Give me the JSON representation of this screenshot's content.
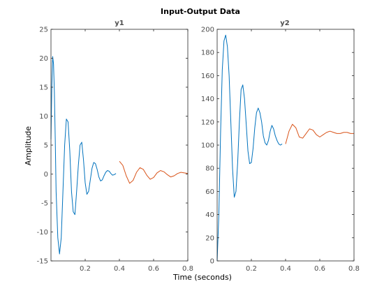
{
  "figure": {
    "title": "Input-Output Data",
    "xlabel": "Time (seconds)",
    "ylabel": "Amplitude"
  },
  "colors": {
    "estimation": "#0072bd",
    "validation": "#d95319",
    "axes": "#262626",
    "text": "#4d4d4d"
  },
  "chart_data": [
    {
      "type": "line",
      "title": "y1",
      "xlim": [
        0,
        0.8
      ],
      "ylim": [
        -15,
        25
      ],
      "xticks": [
        0.2,
        0.4,
        0.6,
        0.8
      ],
      "xtick_labels": [
        "0.2",
        "0.4",
        "0.6",
        "0.8"
      ],
      "yticks": [
        -15,
        -10,
        -5,
        0,
        5,
        10,
        15,
        20,
        25
      ],
      "ytick_labels": [
        "-15",
        "-10",
        "-5",
        "0",
        "5",
        "10",
        "15",
        "20",
        "25"
      ],
      "grid": false,
      "series": [
        {
          "color": "#0072bd",
          "x": [
            0.0,
            0.005,
            0.01,
            0.015,
            0.02,
            0.025,
            0.03,
            0.04,
            0.05,
            0.06,
            0.07,
            0.08,
            0.09,
            0.1,
            0.11,
            0.12,
            0.13,
            0.14,
            0.15,
            0.16,
            0.17,
            0.18,
            0.19,
            0.2,
            0.21,
            0.22,
            0.23,
            0.24,
            0.25,
            0.26,
            0.27,
            0.28,
            0.29,
            0.3,
            0.31,
            0.32,
            0.33,
            0.34,
            0.35,
            0.36,
            0.37,
            0.38
          ],
          "y": [
            6,
            15,
            20.3,
            19,
            14,
            6,
            -3,
            -11,
            -13.8,
            -11,
            -3,
            5,
            9.5,
            9,
            4,
            -3,
            -6.5,
            -7,
            -3,
            1.5,
            5,
            5.5,
            2.5,
            -1.5,
            -3.5,
            -3,
            -1,
            1,
            2,
            1.8,
            0.8,
            -0.5,
            -1.2,
            -1,
            -0.3,
            0.3,
            0.6,
            0.5,
            0.1,
            -0.2,
            -0.1,
            0.1
          ]
        },
        {
          "color": "#d95319",
          "x": [
            0.4,
            0.42,
            0.44,
            0.46,
            0.48,
            0.5,
            0.52,
            0.54,
            0.56,
            0.58,
            0.6,
            0.62,
            0.64,
            0.66,
            0.68,
            0.7,
            0.72,
            0.74,
            0.76,
            0.78,
            0.8
          ],
          "y": [
            2.2,
            1.5,
            -0.3,
            -1.6,
            -1.1,
            0.3,
            1.1,
            0.8,
            -0.2,
            -0.9,
            -0.6,
            0.2,
            0.6,
            0.4,
            -0.1,
            -0.5,
            -0.3,
            0.1,
            0.3,
            0.2,
            0.1
          ]
        }
      ]
    },
    {
      "type": "line",
      "title": "y2",
      "xlim": [
        0,
        0.8
      ],
      "ylim": [
        0,
        200
      ],
      "xticks": [
        0.2,
        0.4,
        0.6,
        0.8
      ],
      "xtick_labels": [
        "0.2",
        "0.4",
        "0.6",
        "0.8"
      ],
      "yticks": [
        0,
        20,
        40,
        60,
        80,
        100,
        120,
        140,
        160,
        180,
        200
      ],
      "ytick_labels": [
        "0",
        "20",
        "40",
        "60",
        "80",
        "100",
        "120",
        "140",
        "160",
        "180",
        "200"
      ],
      "grid": false,
      "series": [
        {
          "color": "#0072bd",
          "x": [
            0.0,
            0.01,
            0.02,
            0.03,
            0.04,
            0.05,
            0.06,
            0.07,
            0.08,
            0.09,
            0.1,
            0.11,
            0.12,
            0.13,
            0.14,
            0.15,
            0.16,
            0.17,
            0.18,
            0.19,
            0.2,
            0.21,
            0.22,
            0.23,
            0.24,
            0.25,
            0.26,
            0.27,
            0.28,
            0.29,
            0.3,
            0.31,
            0.32,
            0.33,
            0.34,
            0.35,
            0.36,
            0.37,
            0.38
          ],
          "y": [
            0,
            40,
            110,
            165,
            190,
            195,
            185,
            160,
            120,
            80,
            55,
            60,
            85,
            120,
            148,
            152,
            140,
            118,
            95,
            84,
            85,
            97,
            115,
            128,
            132,
            128,
            120,
            108,
            102,
            100,
            104,
            112,
            117,
            114,
            108,
            104,
            101,
            100,
            101
          ]
        },
        {
          "color": "#d95319",
          "x": [
            0.4,
            0.42,
            0.44,
            0.46,
            0.48,
            0.5,
            0.52,
            0.54,
            0.56,
            0.58,
            0.6,
            0.62,
            0.64,
            0.66,
            0.68,
            0.7,
            0.72,
            0.74,
            0.76,
            0.78,
            0.8
          ],
          "y": [
            101,
            112,
            118,
            115,
            107,
            106,
            110,
            114,
            113,
            109,
            107,
            109,
            111,
            112,
            111,
            110,
            110,
            111,
            111,
            110,
            110
          ]
        }
      ]
    }
  ]
}
